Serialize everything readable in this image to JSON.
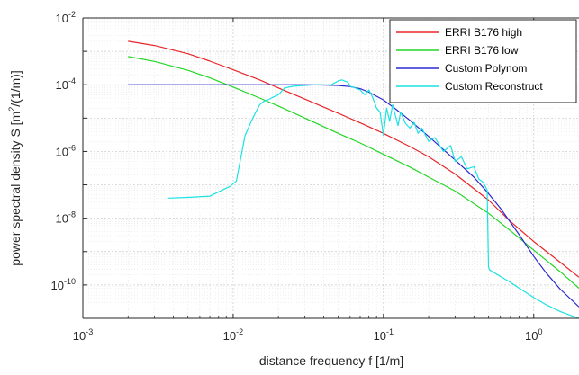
{
  "chart_data": {
    "type": "line",
    "xscale": "log",
    "yscale": "log",
    "xlim": [
      0.001,
      2
    ],
    "ylim": [
      1e-11,
      0.01
    ],
    "grid": true,
    "minor_grid": true,
    "xlabel": "distance frequency f [1/m]",
    "ylabel_parts": {
      "before": "power spectral density S [m",
      "sup": "2",
      "after": "/(1/m)]"
    },
    "x_ticks": [
      {
        "value": 0.001,
        "base": "10",
        "exp": "-3"
      },
      {
        "value": 0.01,
        "base": "10",
        "exp": "-2"
      },
      {
        "value": 0.1,
        "base": "10",
        "exp": "-1"
      },
      {
        "value": 1,
        "base": "10",
        "exp": "0"
      }
    ],
    "y_ticks": [
      {
        "value": 1e-10,
        "base": "10",
        "exp": "-10"
      },
      {
        "value": 1e-08,
        "base": "10",
        "exp": "-8"
      },
      {
        "value": 1e-06,
        "base": "10",
        "exp": "-6"
      },
      {
        "value": 0.0001,
        "base": "10",
        "exp": "-4"
      },
      {
        "value": 0.01,
        "base": "10",
        "exp": "-2"
      }
    ],
    "legend_position": "top-right",
    "series": [
      {
        "name": "ERRI B176 high",
        "color": "#e8262b",
        "x": [
          0.002,
          0.003,
          0.005,
          0.007,
          0.01,
          0.015,
          0.02,
          0.03,
          0.05,
          0.07,
          0.1,
          0.15,
          0.2,
          0.3,
          0.5,
          0.7,
          1.0,
          1.5,
          2.0
        ],
        "y": [
          0.002,
          0.0015,
          0.00085,
          0.00051,
          0.00028,
          0.00014,
          8e-05,
          3.7e-05,
          1.4e-05,
          7.2e-06,
          3.5e-06,
          1.4e-06,
          6.9e-07,
          2.1e-07,
          3.5e-08,
          8e-09,
          2e-09,
          4.8e-10,
          1.7e-10
        ]
      },
      {
        "name": "ERRI B176 low",
        "color": "#23d623",
        "x": [
          0.002,
          0.003,
          0.005,
          0.007,
          0.01,
          0.015,
          0.02,
          0.03,
          0.05,
          0.07,
          0.1,
          0.15,
          0.2,
          0.3,
          0.5,
          0.7,
          1.0,
          1.5,
          2.0
        ],
        "y": [
          0.0007,
          0.0005,
          0.00027,
          0.00016,
          8.5e-05,
          4e-05,
          2.3e-05,
          1e-05,
          3.5e-06,
          1.8e-06,
          8.2e-07,
          3.4e-07,
          1.7e-07,
          6.5e-08,
          1.4e-08,
          4.2e-09,
          1.1e-09,
          2.5e-10,
          8e-11
        ]
      },
      {
        "name": "Custom Polynom",
        "color": "#2a2ad1",
        "x": [
          0.002,
          0.005,
          0.01,
          0.02,
          0.03,
          0.04,
          0.05,
          0.06,
          0.07,
          0.08,
          0.1,
          0.12,
          0.15,
          0.2,
          0.25,
          0.3,
          0.4,
          0.5,
          0.6,
          0.7,
          0.8,
          1.0,
          1.2,
          1.5,
          2.0
        ],
        "y": [
          0.0001,
          0.0001,
          0.0001,
          0.0001,
          0.0001,
          9.8e-05,
          9.5e-05,
          8.8e-05,
          7.6e-05,
          6e-05,
          3.5e-05,
          1.9e-05,
          8.6e-06,
          2.8e-06,
          1.15e-06,
          5.5e-07,
          1.7e-07,
          5.5e-08,
          2e-08,
          7.5e-09,
          3.2e-09,
          7.2e-10,
          2.4e-10,
          7.5e-11,
          2.2e-11
        ]
      },
      {
        "name": "Custom Reconstruct",
        "color": "#1ce2e2",
        "x": [
          0.0037,
          0.005,
          0.007,
          0.0095,
          0.0105,
          0.012,
          0.0135,
          0.015,
          0.016,
          0.017,
          0.018,
          0.019,
          0.02,
          0.022,
          0.025,
          0.03,
          0.035,
          0.04,
          0.045,
          0.05,
          0.053,
          0.055,
          0.058,
          0.06,
          0.065,
          0.07,
          0.075,
          0.08,
          0.085,
          0.09,
          0.095,
          0.1,
          0.105,
          0.11,
          0.115,
          0.12,
          0.125,
          0.13,
          0.14,
          0.15,
          0.16,
          0.17,
          0.18,
          0.2,
          0.22,
          0.25,
          0.28,
          0.3,
          0.33,
          0.36,
          0.4,
          0.43,
          0.46,
          0.49,
          0.5,
          0.51,
          0.6,
          0.7,
          0.8,
          1.0,
          1.2,
          1.5,
          2.0
        ],
        "y": [
          4e-08,
          4.2e-08,
          4.6e-08,
          9e-08,
          1.3e-07,
          3e-06,
          1e-05,
          2.5e-05,
          3.2e-05,
          3.5e-05,
          4e-05,
          4.5e-05,
          5e-05,
          8e-05,
          9e-05,
          9.5e-05,
          0.0001,
          9.8e-05,
          0.0001,
          0.00013,
          0.00014,
          0.00013,
          0.00012,
          9e-05,
          8e-05,
          7e-05,
          5e-05,
          7e-05,
          4e-05,
          2e-05,
          1.5e-05,
          3e-06,
          2e-05,
          8e-06,
          2.5e-05,
          1.2e-05,
          6e-06,
          1.5e-05,
          7e-06,
          5e-06,
          7.5e-06,
          3.5e-06,
          5e-06,
          2e-06,
          2.6e-06,
          1e-06,
          1.5e-06,
          5e-07,
          7e-07,
          3e-07,
          3.5e-07,
          1.5e-07,
          1.2e-07,
          7e-08,
          3.5e-10,
          2.8e-10,
          1.8e-10,
          1.2e-10,
          8e-11,
          4.2e-11,
          2.6e-11,
          1.6e-11,
          1e-11
        ]
      }
    ]
  }
}
